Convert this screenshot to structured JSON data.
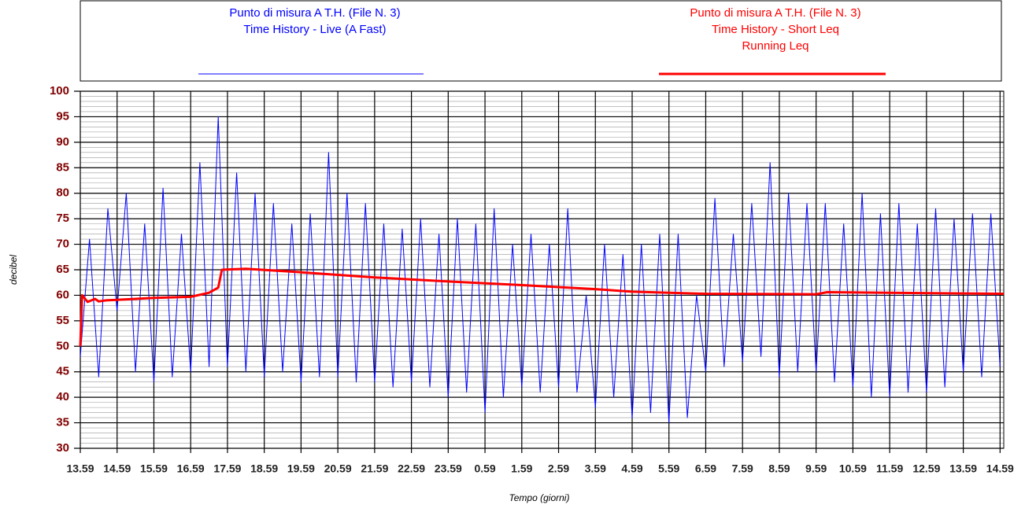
{
  "chart_data": {
    "type": "line",
    "x_title": "Tempo (giorni)",
    "y_title": "decibel",
    "xlim": [
      0,
      25.1
    ],
    "ylim": [
      30,
      100
    ],
    "yticks": [
      30,
      35,
      40,
      45,
      50,
      55,
      60,
      65,
      70,
      75,
      80,
      85,
      90,
      95,
      100
    ],
    "minor_grid_step": 1,
    "xticks": [
      {
        "value": 0,
        "label": "13.59"
      },
      {
        "value": 1,
        "label": "14.59"
      },
      {
        "value": 2,
        "label": "15.59"
      },
      {
        "value": 3,
        "label": "16.59"
      },
      {
        "value": 4,
        "label": "17.59"
      },
      {
        "value": 5,
        "label": "18.59"
      },
      {
        "value": 6,
        "label": "19.59"
      },
      {
        "value": 7,
        "label": "20.59"
      },
      {
        "value": 8,
        "label": "21.59"
      },
      {
        "value": 9,
        "label": "22.59"
      },
      {
        "value": 10,
        "label": "23.59"
      },
      {
        "value": 11,
        "label": "0.59"
      },
      {
        "value": 12,
        "label": "1.59"
      },
      {
        "value": 13,
        "label": "2.59"
      },
      {
        "value": 14,
        "label": "3.59"
      },
      {
        "value": 15,
        "label": "4.59"
      },
      {
        "value": 16,
        "label": "5.59"
      },
      {
        "value": 17,
        "label": "6.59"
      },
      {
        "value": 18,
        "label": "7.59"
      },
      {
        "value": 19,
        "label": "8.59"
      },
      {
        "value": 20,
        "label": "9.59"
      },
      {
        "value": 21,
        "label": "10.59"
      },
      {
        "value": 22,
        "label": "11.59"
      },
      {
        "value": 23,
        "label": "12.59"
      },
      {
        "value": 24,
        "label": "13.59"
      },
      {
        "value": 25,
        "label": "14.59"
      }
    ],
    "grid": true,
    "series": [
      {
        "name": [
          "Punto di misura A T.H.  (File N. 3)",
          "Time History - Live (A Fast)"
        ],
        "color": "#0000ff",
        "width": 1,
        "x": [
          0,
          0.25,
          0.5,
          0.75,
          1,
          1.25,
          1.5,
          1.75,
          2,
          2.25,
          2.5,
          2.75,
          3,
          3.25,
          3.5,
          3.75,
          4,
          4.25,
          4.5,
          4.75,
          5,
          5.25,
          5.5,
          5.75,
          6,
          6.25,
          6.5,
          6.75,
          7,
          7.25,
          7.5,
          7.75,
          8,
          8.25,
          8.5,
          8.75,
          9,
          9.25,
          9.5,
          9.75,
          10,
          10.25,
          10.5,
          10.75,
          11,
          11.25,
          11.5,
          11.75,
          12,
          12.25,
          12.5,
          12.75,
          13,
          13.25,
          13.5,
          13.75,
          14,
          14.25,
          14.5,
          14.75,
          15,
          15.25,
          15.5,
          15.75,
          16,
          16.25,
          16.5,
          16.75,
          17,
          17.25,
          17.5,
          17.75,
          18,
          18.25,
          18.5,
          18.75,
          19,
          19.25,
          19.5,
          19.75,
          20,
          20.25,
          20.5,
          20.75,
          21,
          21.25,
          21.5,
          21.75,
          22,
          22.25,
          22.5,
          22.75,
          23,
          23.25,
          23.5,
          23.75,
          24,
          24.25,
          24.5,
          24.75,
          25
        ],
        "values": [
          48,
          71,
          44,
          77,
          57,
          80,
          45,
          74,
          43,
          81,
          44,
          72,
          45,
          86,
          46,
          95,
          46,
          84,
          45,
          80,
          44,
          78,
          45,
          74,
          43,
          76,
          44,
          88,
          44,
          80,
          43,
          78,
          43,
          74,
          42,
          73,
          43,
          75,
          42,
          72,
          40,
          75,
          41,
          74,
          37,
          77,
          40,
          70,
          42,
          72,
          41,
          70,
          42,
          77,
          41,
          60,
          38,
          70,
          40,
          68,
          36,
          70,
          37,
          72,
          35,
          72,
          36,
          60,
          45,
          79,
          46,
          72,
          47,
          78,
          48,
          86,
          44,
          80,
          45,
          78,
          45,
          78,
          43,
          74,
          42,
          80,
          40,
          76,
          40,
          78,
          41,
          74,
          41,
          77,
          42,
          75,
          45,
          76,
          44,
          76,
          46
        ]
      },
      {
        "name": [
          "Punto di misura A T.H.  (File N. 3)",
          "Time History - Short Leq",
          "Running Leq"
        ],
        "color": "#ff0000",
        "width": 3,
        "x": [
          0,
          0.05,
          0.2,
          0.4,
          0.5,
          0.7,
          1,
          1.5,
          2,
          3,
          3.5,
          3.75,
          3.85,
          4.5,
          6,
          8,
          10,
          12,
          14,
          15,
          17,
          20,
          20.3,
          22,
          25.1
        ],
        "values": [
          50,
          60,
          58.7,
          59.3,
          58.8,
          59,
          59.1,
          59.3,
          59.5,
          59.7,
          60.5,
          61.5,
          65,
          65.2,
          64.5,
          63.5,
          62.7,
          62,
          61.2,
          60.7,
          60.3,
          60.2,
          60.6,
          60.5,
          60.3
        ]
      }
    ]
  }
}
